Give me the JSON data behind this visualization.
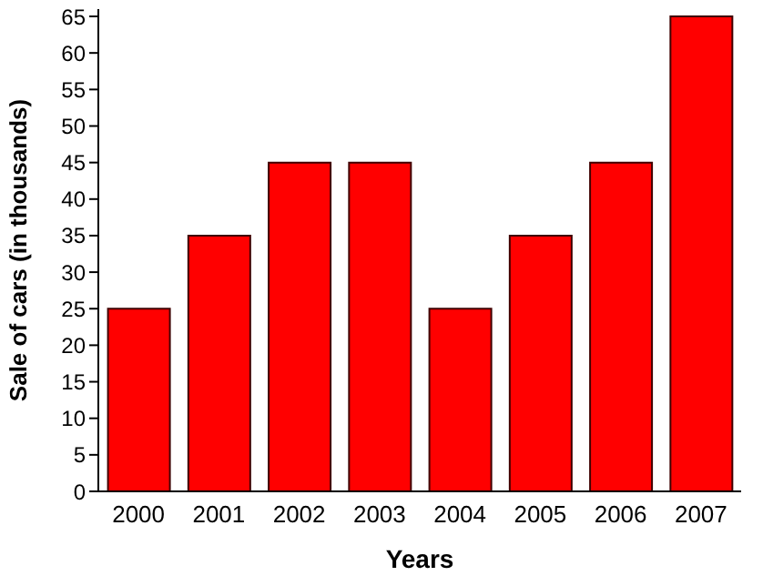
{
  "chart_data": {
    "type": "bar",
    "xlabel": "Years",
    "ylabel": "Sale of cars (in thousands)",
    "categories": [
      "2000",
      "2001",
      "2002",
      "2003",
      "2004",
      "2005",
      "2006",
      "2007"
    ],
    "values": [
      25,
      35,
      45,
      45,
      25,
      35,
      45,
      65
    ],
    "color": "#ff0000",
    "ylim": [
      0,
      66
    ],
    "yticks": [
      0,
      5,
      10,
      15,
      20,
      25,
      30,
      35,
      40,
      45,
      50,
      55,
      60,
      65
    ],
    "grid": false
  }
}
